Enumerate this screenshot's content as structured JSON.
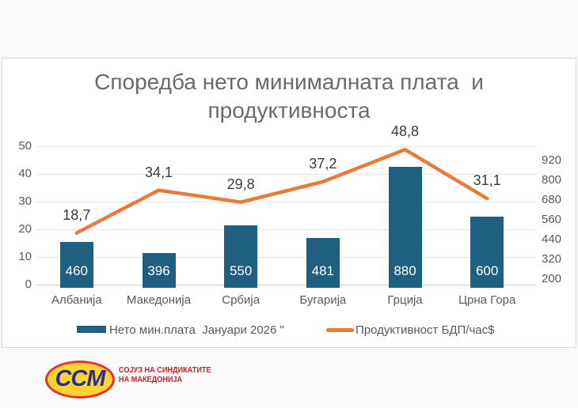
{
  "title": {
    "line1": "Споредба нето минималната плата  и",
    "line2": "продуктивноста"
  },
  "chart_data": {
    "type": "bar",
    "title": "Споредба нето минималната плата и продуктивноста",
    "categories": [
      "Албанија",
      "Македонија",
      "Србија",
      "Бугарија",
      "Грција",
      "Црна Гора"
    ],
    "series": [
      {
        "name": "Нето мин.плата  Јануари 2026 \"",
        "type": "bar",
        "axis": "right",
        "values": [
          460,
          396,
          550,
          481,
          880,
          600
        ],
        "color": "#1f5f7f"
      },
      {
        "name": "Продуктивност БДП/час$",
        "type": "line",
        "axis": "left",
        "values": [
          18.7,
          34.1,
          29.8,
          37.2,
          48.8,
          31.1
        ],
        "labels": [
          "18,7",
          "34,1",
          "29,8",
          "37,2",
          "48,8",
          "31,1"
        ],
        "color": "#e87b39"
      }
    ],
    "left_axis": {
      "ticks": [
        "50",
        "40",
        "30",
        "20",
        "10",
        "0"
      ],
      "min": 0,
      "max": 50
    },
    "right_axis": {
      "ticks": [
        "920",
        "800",
        "680",
        "560",
        "440",
        "320",
        "200"
      ],
      "min": 200,
      "max": 920
    },
    "grid": true,
    "legend_position": "bottom"
  },
  "logo": {
    "acronym": "ССМ",
    "org_line1": "СОЈУЗ НА СИНДИКАТИТЕ",
    "org_line2": "НА МАКЕДОНИЈА"
  },
  "colors": {
    "bar": "#1f5f7f",
    "line": "#e87b39",
    "title_text": "#6a6a6a",
    "axis_text": "#595959",
    "grid": "#e6e6e6",
    "card_border": "#d8d8d8",
    "logo_blue": "#262f8f",
    "logo_yellow": "#ffd42e",
    "logo_red": "#cb2026"
  }
}
